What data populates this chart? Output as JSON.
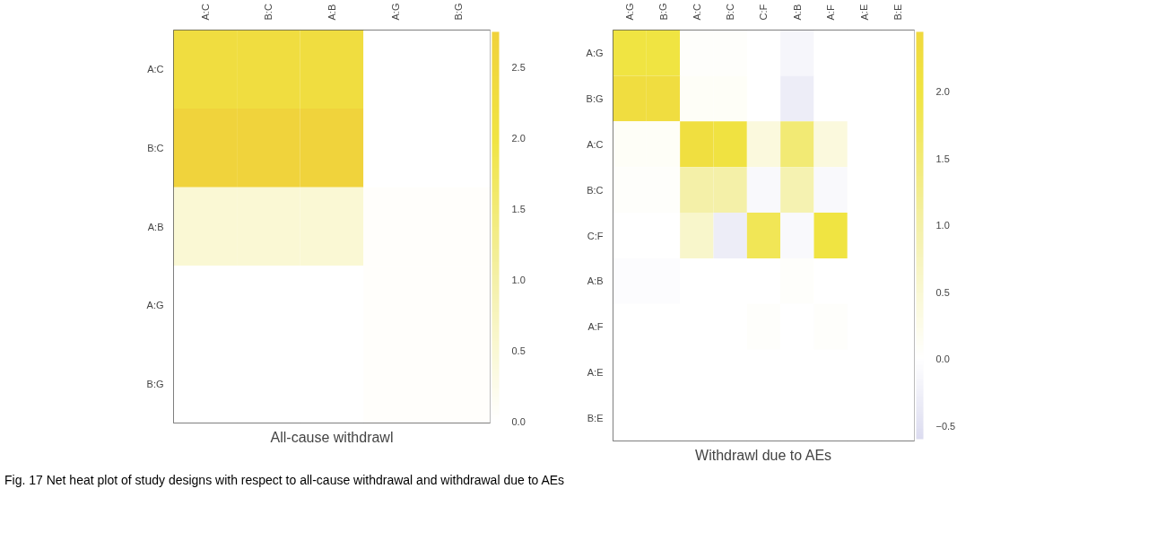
{
  "chart_data": [
    {
      "type": "heatmap",
      "title": "All-cause withdrawl",
      "categories": [
        "A:C",
        "B:C",
        "A:B",
        "A:G",
        "B:G"
      ],
      "y_categories": [
        "A:C",
        "B:C",
        "A:B",
        "A:G",
        "B:G"
      ],
      "cells": [
        [
          2.3,
          2.3,
          2.3,
          0,
          0
        ],
        [
          2.7,
          2.7,
          2.7,
          0,
          0
        ],
        [
          0.5,
          0.5,
          0.5,
          0.05,
          0.05
        ],
        [
          0,
          0,
          0,
          0.05,
          0.05
        ],
        [
          0,
          0,
          0,
          0.05,
          0.05
        ]
      ],
      "clim": [
        0,
        2.75
      ],
      "cticks": [
        {
          "value": 0,
          "label": "0.0"
        },
        {
          "value": 0.5,
          "label": "0.5"
        },
        {
          "value": 1,
          "label": "1.0"
        },
        {
          "value": 1.5,
          "label": "1.5"
        },
        {
          "value": 2,
          "label": "2.0"
        },
        {
          "value": 2.5,
          "label": "2.5"
        }
      ]
    },
    {
      "type": "heatmap",
      "title": "Withdrawl due to AEs",
      "categories": [
        "A:G",
        "B:G",
        "A:C",
        "B:C",
        "C:F",
        "A:B",
        "A:F",
        "A:E",
        "B:E"
      ],
      "y_categories": [
        "A:G",
        "B:G",
        "A:C",
        "B:C",
        "C:F",
        "A:B",
        "A:F",
        "A:E",
        "B:E"
      ],
      "cells": [
        [
          2.0,
          2.0,
          0.05,
          0.05,
          0,
          -0.15,
          0,
          0,
          0
        ],
        [
          2.3,
          2.3,
          0.1,
          0.1,
          0,
          -0.3,
          0,
          0,
          0
        ],
        [
          0.1,
          0.1,
          2.2,
          2.1,
          0.4,
          1.5,
          0.4,
          0,
          0
        ],
        [
          0.05,
          0.05,
          1.0,
          1.0,
          -0.1,
          0.9,
          -0.1,
          0,
          0
        ],
        [
          0,
          0,
          0.6,
          -0.3,
          1.8,
          -0.1,
          2.0,
          0,
          0
        ],
        [
          -0.05,
          -0.05,
          0,
          0,
          0,
          0.05,
          0,
          0,
          0
        ],
        [
          0,
          0,
          0,
          0,
          0.05,
          0,
          0.05,
          0,
          0
        ],
        [
          0,
          0,
          0,
          0,
          0,
          0,
          0,
          0,
          0
        ],
        [
          0,
          0,
          0,
          0,
          0,
          0,
          0,
          0,
          0
        ]
      ],
      "clim": [
        -0.6,
        2.45
      ],
      "cticks": [
        {
          "value": -0.5,
          "label": "−0.5"
        },
        {
          "value": 0,
          "label": "0.0"
        },
        {
          "value": 0.5,
          "label": "0.5"
        },
        {
          "value": 1,
          "label": "1.0"
        },
        {
          "value": 1.5,
          "label": "1.5"
        },
        {
          "value": 2,
          "label": "2.0"
        }
      ],
      "annotations": [
        "Fig. 17 Net heat plot of study designs with respect to all-cause withdrawal and withdrawal due to AEs"
      ]
    }
  ]
}
